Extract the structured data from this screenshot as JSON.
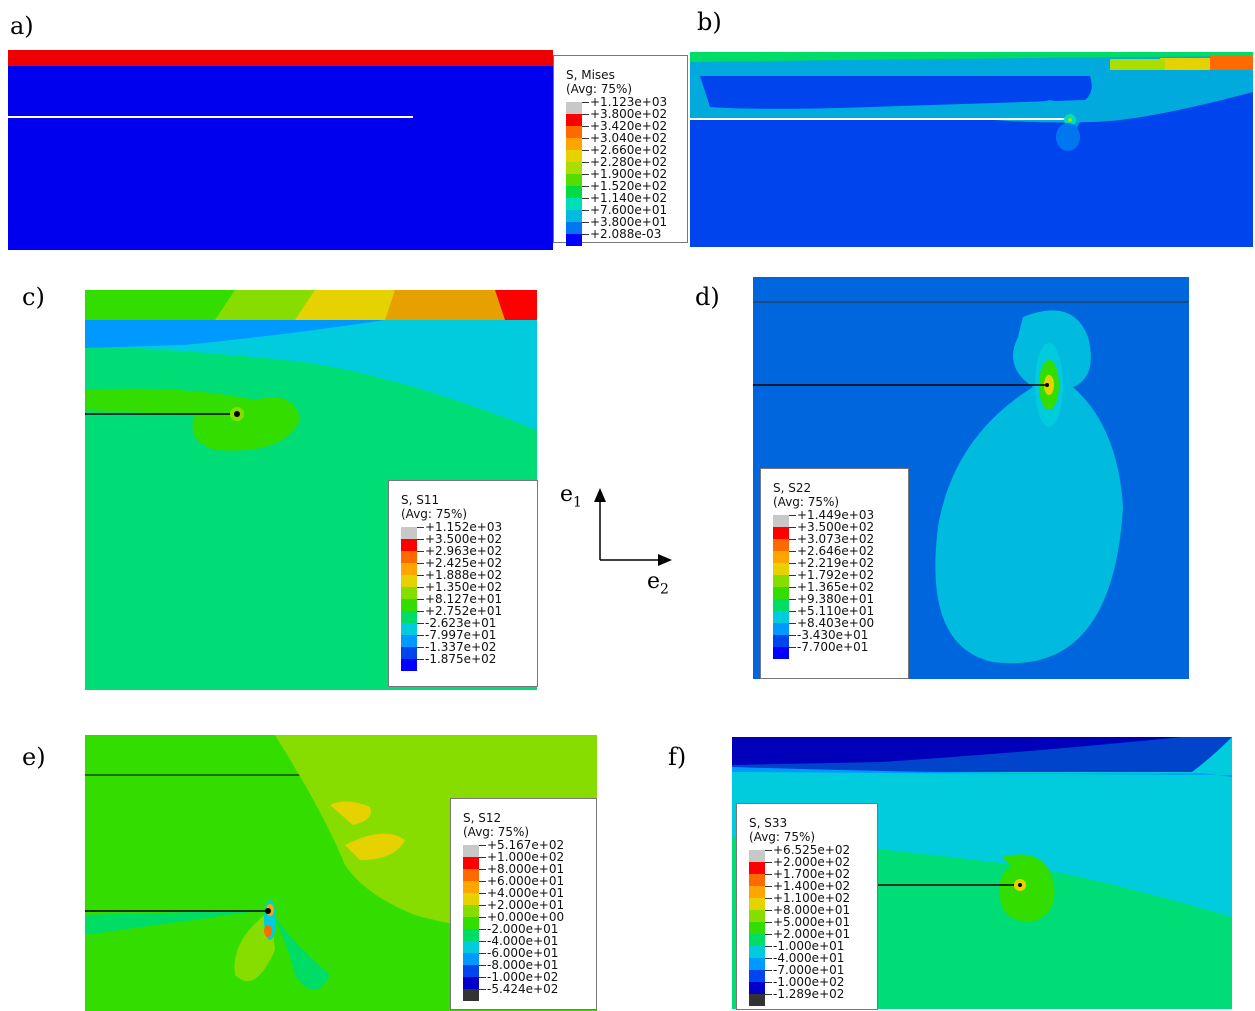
{
  "panel_labels": [
    "a)",
    "b)",
    "c)",
    "d)",
    "e)",
    "f)"
  ],
  "axes": {
    "e1_base": "e",
    "e1_sub": "1",
    "e2_base": "e",
    "e2_sub": "2"
  },
  "legend_mises": {
    "title": "S, Mises",
    "avg": "(Avg: 75%)",
    "values": [
      "+1.123e+03",
      "+3.800e+02",
      "+3.420e+02",
      "+3.040e+02",
      "+2.660e+02",
      "+2.280e+02",
      "+1.900e+02",
      "+1.520e+02",
      "+1.140e+02",
      "+7.600e+01",
      "+3.800e+01",
      "+2.088e-03"
    ],
    "colors": [
      "#c8c8c8",
      "#ff0000",
      "#ff6a00",
      "#ffa500",
      "#e6d200",
      "#aadd00",
      "#55dd00",
      "#00dd44",
      "#00ddbb",
      "#00bbdd",
      "#0077ee",
      "#0000ff"
    ]
  },
  "legend_s11": {
    "title": "S, S11",
    "avg": "(Avg: 75%)",
    "values": [
      "+1.152e+03",
      "+3.500e+02",
      "+2.963e+02",
      "+2.425e+02",
      "+1.888e+02",
      "+1.350e+02",
      "+8.127e+01",
      "+2.752e+01",
      "-2.623e+01",
      "-7.997e+01",
      "-1.337e+02",
      "-1.875e+02"
    ],
    "colors": [
      "#c8c8c8",
      "#ff0000",
      "#ff6a00",
      "#ffa500",
      "#e6d200",
      "#88dd00",
      "#33dd00",
      "#00dd66",
      "#00ccdd",
      "#0099ff",
      "#0044ee",
      "#0000ff"
    ]
  },
  "legend_s22": {
    "title": "S, S22",
    "avg": "(Avg: 75%)",
    "values": [
      "+1.449e+03",
      "+3.500e+02",
      "+3.073e+02",
      "+2.646e+02",
      "+2.219e+02",
      "+1.792e+02",
      "+1.365e+02",
      "+9.380e+01",
      "+5.110e+01",
      "+8.403e+00",
      "-3.430e+01",
      "-7.700e+01"
    ],
    "colors": [
      "#c8c8c8",
      "#ff0000",
      "#ff6a00",
      "#ffa500",
      "#e6d200",
      "#88dd00",
      "#33dd00",
      "#00dd66",
      "#00ccdd",
      "#0099ff",
      "#0044ee",
      "#0000ff"
    ]
  },
  "legend_s12": {
    "title": "S, S12",
    "avg": "(Avg: 75%)",
    "values": [
      "+5.167e+02",
      "+1.000e+02",
      "+8.000e+01",
      "+6.000e+01",
      "+4.000e+01",
      "+2.000e+01",
      "+0.000e+00",
      "-2.000e+01",
      "-4.000e+01",
      "-6.000e+01",
      "-8.000e+01",
      "-1.000e+02",
      "-5.424e+02"
    ],
    "colors": [
      "#c8c8c8",
      "#ff0000",
      "#ff6a00",
      "#ffa500",
      "#e6d200",
      "#88dd00",
      "#33dd00",
      "#00dd66",
      "#00ccdd",
      "#0099ff",
      "#0044ee",
      "#0000cc",
      "#333333"
    ]
  },
  "legend_s33": {
    "title": "S, S33",
    "avg": "(Avg: 75%)",
    "values": [
      "+6.525e+02",
      "+2.000e+02",
      "+1.700e+02",
      "+1.400e+02",
      "+1.100e+02",
      "+8.000e+01",
      "+5.000e+01",
      "+2.000e+01",
      "-1.000e+01",
      "-4.000e+01",
      "-7.000e+01",
      "-1.000e+02",
      "-1.289e+02"
    ],
    "colors": [
      "#c8c8c8",
      "#ff0000",
      "#ff6a00",
      "#ffa500",
      "#e6d200",
      "#88dd00",
      "#33dd00",
      "#00dd66",
      "#00ccdd",
      "#0099ff",
      "#0044ee",
      "#0000cc",
      "#333333"
    ]
  }
}
